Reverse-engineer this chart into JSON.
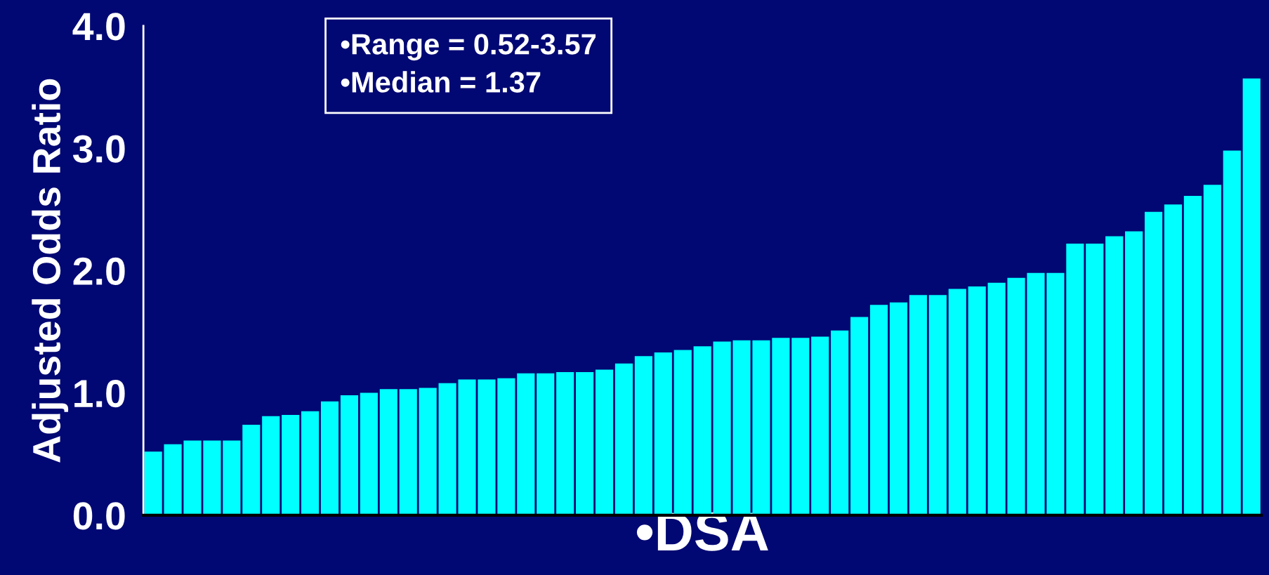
{
  "chart_data": {
    "type": "bar",
    "xlabel": "•DSA",
    "ylabel": "Adjusted Odds Ratio",
    "categories": [
      null,
      null,
      null,
      null,
      null,
      null,
      null,
      null,
      null,
      null,
      null,
      null,
      null,
      null,
      null,
      null,
      null,
      null,
      null,
      null,
      null,
      null,
      null,
      null,
      null,
      null,
      null,
      null,
      null,
      null,
      null,
      null,
      null,
      null,
      null,
      null,
      null,
      null,
      null,
      null,
      null,
      null,
      null,
      null,
      null,
      null,
      null,
      null,
      null,
      null,
      null,
      null,
      null,
      null,
      null,
      null,
      null
    ],
    "values": [
      0.52,
      0.58,
      0.61,
      0.61,
      0.61,
      0.74,
      0.81,
      0.82,
      0.85,
      0.93,
      0.98,
      1.0,
      1.03,
      1.03,
      1.04,
      1.08,
      1.11,
      1.11,
      1.12,
      1.16,
      1.16,
      1.17,
      1.17,
      1.19,
      1.24,
      1.3,
      1.33,
      1.35,
      1.38,
      1.42,
      1.43,
      1.43,
      1.45,
      1.45,
      1.46,
      1.51,
      1.62,
      1.72,
      1.74,
      1.8,
      1.8,
      1.85,
      1.87,
      1.9,
      1.94,
      1.98,
      1.98,
      2.22,
      2.22,
      2.28,
      2.32,
      2.48,
      2.54,
      2.61,
      2.7,
      2.98,
      3.57
    ],
    "color": "#00ffff",
    "ylim": [
      0,
      4.0
    ],
    "yticks": [
      {
        "value": 0,
        "label": "0.0"
      },
      {
        "value": 1,
        "label": "1.0"
      },
      {
        "value": 2,
        "label": "2.0"
      },
      {
        "value": 3,
        "label": "3.0"
      },
      {
        "value": 4,
        "label": "4.0"
      }
    ],
    "grid": false,
    "annotations": [
      "•Range = 0.52-3.57",
      "•Median = 1.37"
    ]
  }
}
